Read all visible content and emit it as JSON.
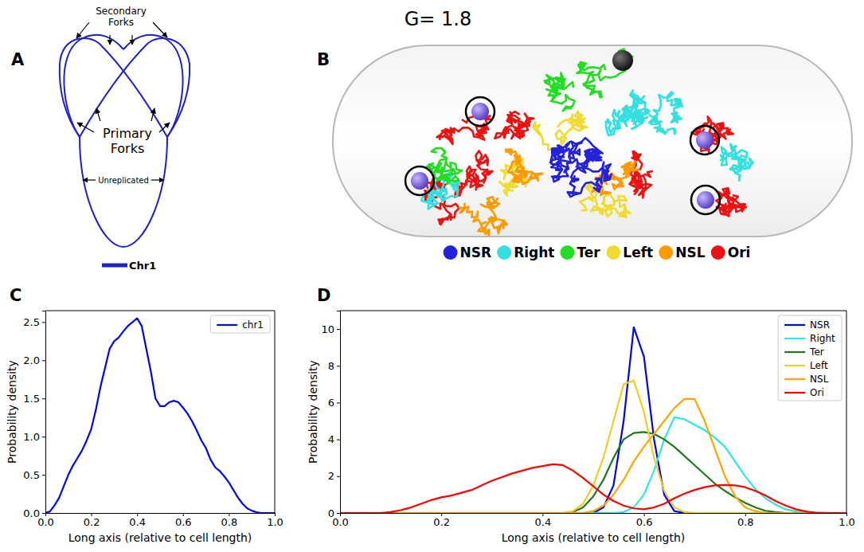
{
  "title": "G= 1.8",
  "panel_letters": [
    "A",
    "B",
    "C",
    "D"
  ],
  "diagram": {
    "secondary_forks": "Secondary Forks",
    "primary_forks": "Primary Forks",
    "unreplicated": "Unreplicated",
    "legend": "Chr1",
    "color": "#2020d0"
  },
  "rendering": {
    "legend": [
      {
        "name": "NSR",
        "color": "#2222dd"
      },
      {
        "name": "Right",
        "color": "#33e0e0"
      },
      {
        "name": "Ter",
        "color": "#22dd22"
      },
      {
        "name": "Left",
        "color": "#f0dc30"
      },
      {
        "name": "NSL",
        "color": "#ff9900"
      },
      {
        "name": "Ori",
        "color": "#ee1111"
      }
    ]
  },
  "chart_data": [
    {
      "type": "line",
      "xlabel": "Long axis (relative to cell length)",
      "ylabel": "Probability density",
      "x": [
        0,
        0.02,
        0.04,
        0.06,
        0.08,
        0.1,
        0.12,
        0.14,
        0.16,
        0.18,
        0.2,
        0.22,
        0.24,
        0.26,
        0.28,
        0.3,
        0.32,
        0.34,
        0.36,
        0.38,
        0.4,
        0.42,
        0.44,
        0.46,
        0.48,
        0.5,
        0.52,
        0.54,
        0.56,
        0.58,
        0.6,
        0.62,
        0.64,
        0.66,
        0.68,
        0.7,
        0.72,
        0.74,
        0.76,
        0.78,
        0.8,
        0.82,
        0.84,
        0.86,
        0.88,
        0.9,
        0.92,
        0.94,
        0.96,
        0.98,
        1.0
      ],
      "series": [
        {
          "name": "chr1",
          "color": "#0000ff",
          "values": [
            0,
            0.02,
            0.1,
            0.2,
            0.35,
            0.5,
            0.62,
            0.72,
            0.82,
            0.95,
            1.1,
            1.35,
            1.65,
            1.9,
            2.15,
            2.25,
            2.3,
            2.38,
            2.45,
            2.5,
            2.55,
            2.45,
            2.15,
            1.85,
            1.5,
            1.4,
            1.4,
            1.45,
            1.47,
            1.45,
            1.38,
            1.3,
            1.2,
            1.08,
            0.95,
            0.85,
            0.7,
            0.6,
            0.55,
            0.48,
            0.4,
            0.3,
            0.2,
            0.12,
            0.06,
            0.03,
            0.01,
            0,
            0,
            0,
            0
          ]
        }
      ],
      "xlim": [
        0,
        1
      ],
      "ylim": [
        0,
        2.65
      ],
      "xticks": [
        {
          "value": 0,
          "label": "0.0"
        },
        {
          "value": 0.2,
          "label": "0.2"
        },
        {
          "value": 0.4,
          "label": "0.4"
        },
        {
          "value": 0.6,
          "label": "0.6"
        },
        {
          "value": 0.8,
          "label": "0.8"
        },
        {
          "value": 1,
          "label": "1.0"
        }
      ],
      "yticks": [
        {
          "value": 0,
          "label": "0.0"
        },
        {
          "value": 0.5,
          "label": "0.5"
        },
        {
          "value": 1,
          "label": "1.0"
        },
        {
          "value": 1.5,
          "label": "1.5"
        },
        {
          "value": 2,
          "label": "2.0"
        },
        {
          "value": 2.5,
          "label": "2.5"
        }
      ],
      "legend": "upper right"
    },
    {
      "type": "line",
      "xlabel": "Long axis (relative to cell length)",
      "ylabel": "Probability density",
      "x": [
        0,
        0.02,
        0.04,
        0.06,
        0.08,
        0.1,
        0.12,
        0.14,
        0.16,
        0.18,
        0.2,
        0.22,
        0.24,
        0.26,
        0.28,
        0.3,
        0.32,
        0.34,
        0.36,
        0.38,
        0.4,
        0.42,
        0.44,
        0.46,
        0.48,
        0.5,
        0.52,
        0.54,
        0.56,
        0.58,
        0.6,
        0.62,
        0.64,
        0.66,
        0.68,
        0.7,
        0.72,
        0.74,
        0.76,
        0.78,
        0.8,
        0.82,
        0.84,
        0.86,
        0.88,
        0.9,
        0.92,
        0.94,
        0.96,
        0.98,
        1.0
      ],
      "series": [
        {
          "name": "NSR",
          "color": "#0000ff",
          "values": [
            0,
            0,
            0,
            0,
            0,
            0,
            0,
            0,
            0,
            0,
            0,
            0,
            0,
            0,
            0,
            0,
            0,
            0,
            0,
            0,
            0,
            0,
            0,
            0,
            0,
            0,
            0.3,
            1.5,
            5.0,
            10.1,
            8.5,
            4.0,
            1.0,
            0.1,
            0,
            0,
            0,
            0,
            0,
            0,
            0,
            0,
            0,
            0,
            0,
            0,
            0,
            0,
            0,
            0,
            0
          ]
        },
        {
          "name": "Right",
          "color": "#2ee6e6",
          "values": [
            0,
            0,
            0,
            0,
            0,
            0,
            0,
            0,
            0,
            0,
            0,
            0,
            0,
            0,
            0,
            0,
            0,
            0,
            0,
            0,
            0,
            0,
            0,
            0,
            0,
            0,
            0,
            0,
            0.05,
            0.3,
            1.0,
            2.3,
            4.0,
            5.2,
            5.1,
            4.8,
            4.5,
            4.1,
            3.6,
            2.8,
            2.0,
            1.3,
            0.8,
            0.45,
            0.2,
            0.08,
            0.02,
            0,
            0,
            0,
            0
          ]
        },
        {
          "name": "Ter",
          "color": "#1c7a1c",
          "values": [
            0,
            0,
            0,
            0,
            0,
            0,
            0,
            0,
            0,
            0,
            0,
            0,
            0,
            0,
            0,
            0,
            0,
            0,
            0,
            0,
            0,
            0,
            0,
            0.05,
            0.3,
            0.9,
            1.8,
            3.0,
            4.0,
            4.35,
            4.4,
            4.3,
            4.0,
            3.6,
            3.1,
            2.6,
            2.1,
            1.6,
            1.2,
            0.85,
            0.55,
            0.3,
            0.12,
            0.05,
            0,
            0,
            0,
            0,
            0,
            0,
            0
          ]
        },
        {
          "name": "Left",
          "color": "#f5cc1f",
          "values": [
            0,
            0,
            0,
            0,
            0,
            0,
            0,
            0,
            0,
            0,
            0,
            0,
            0,
            0,
            0,
            0,
            0,
            0,
            0,
            0,
            0,
            0,
            0,
            0.1,
            0.5,
            1.5,
            3.0,
            5.0,
            7.0,
            7.2,
            5.5,
            3.0,
            1.2,
            0.3,
            0.05,
            0,
            0,
            0,
            0,
            0,
            0,
            0,
            0,
            0,
            0,
            0,
            0,
            0,
            0,
            0,
            0
          ]
        },
        {
          "name": "NSL",
          "color": "#ffa500",
          "values": [
            0,
            0,
            0,
            0,
            0,
            0,
            0,
            0,
            0,
            0,
            0,
            0,
            0,
            0,
            0,
            0,
            0,
            0,
            0,
            0,
            0,
            0,
            0,
            0,
            0,
            0.1,
            0.4,
            1.0,
            1.8,
            2.8,
            3.6,
            4.3,
            5.0,
            5.7,
            6.2,
            6.2,
            5.0,
            3.5,
            2.0,
            0.9,
            0.3,
            0.1,
            0,
            0,
            0,
            0,
            0,
            0,
            0,
            0,
            0
          ]
        },
        {
          "name": "Ori",
          "color": "#ff0000",
          "values": [
            0,
            0,
            0,
            0,
            0,
            0.05,
            0.15,
            0.3,
            0.5,
            0.7,
            0.85,
            0.95,
            1.1,
            1.25,
            1.5,
            1.75,
            1.95,
            2.15,
            2.3,
            2.45,
            2.55,
            2.65,
            2.6,
            2.3,
            1.9,
            1.45,
            1.0,
            0.65,
            0.4,
            0.25,
            0.2,
            0.3,
            0.5,
            0.8,
            1.05,
            1.25,
            1.4,
            1.5,
            1.52,
            1.5,
            1.4,
            1.2,
            0.95,
            0.65,
            0.4,
            0.2,
            0.08,
            0.02,
            0,
            0,
            0
          ]
        }
      ],
      "xlim": [
        0,
        1
      ],
      "ylim": [
        0,
        11
      ],
      "xticks": [
        {
          "value": 0,
          "label": "0.0"
        },
        {
          "value": 0.2,
          "label": "0.2"
        },
        {
          "value": 0.4,
          "label": "0.4"
        },
        {
          "value": 0.6,
          "label": "0.6"
        },
        {
          "value": 0.8,
          "label": "0.8"
        },
        {
          "value": 1,
          "label": "1.0"
        }
      ],
      "yticks": [
        0,
        2,
        4,
        6,
        8,
        10
      ],
      "legend": "upper right"
    }
  ]
}
